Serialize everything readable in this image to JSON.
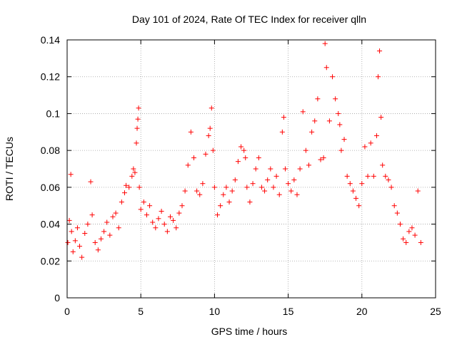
{
  "chart_data": {
    "type": "scatter",
    "title": "Day 101 of 2024, Rate Of TEC Index for receiver qlln",
    "xlabel": "GPS time / hours",
    "ylabel": "ROTI / TECUs",
    "xlim": [
      0,
      25
    ],
    "ylim": [
      0,
      0.14
    ],
    "xticks": [
      0,
      5,
      10,
      15,
      20,
      25
    ],
    "xtick_labels": [
      "0",
      "5",
      "10",
      "15",
      "20",
      "25"
    ],
    "yticks": [
      0,
      0.02,
      0.04,
      0.06,
      0.08,
      0.1,
      0.12,
      0.14
    ],
    "ytick_labels": [
      "0",
      "0.02",
      "0.04",
      "0.06",
      "0.08",
      "0.1",
      "0.12",
      "0.14"
    ],
    "grid": true,
    "marker": "+",
    "series": [
      {
        "name": "ROTI",
        "color": "#ff0000",
        "x": [
          0.05,
          0.15,
          0.25,
          0.3,
          0.4,
          0.55,
          0.7,
          0.85,
          1.0,
          1.2,
          1.4,
          1.6,
          1.7,
          1.9,
          2.1,
          2.3,
          2.5,
          2.7,
          2.9,
          3.1,
          3.3,
          3.5,
          3.7,
          3.9,
          4.0,
          4.2,
          4.4,
          4.5,
          4.6,
          4.7,
          4.75,
          4.8,
          4.85,
          4.9,
          5.0,
          5.2,
          5.4,
          5.6,
          5.8,
          6.0,
          6.2,
          6.4,
          6.6,
          6.8,
          7.0,
          7.2,
          7.4,
          7.6,
          7.8,
          8.0,
          8.2,
          8.4,
          8.6,
          8.8,
          9.0,
          9.2,
          9.4,
          9.6,
          9.7,
          9.8,
          9.9,
          10.0,
          10.2,
          10.4,
          10.6,
          10.8,
          11.0,
          11.2,
          11.4,
          11.6,
          11.8,
          12.0,
          12.1,
          12.2,
          12.4,
          12.6,
          12.8,
          13.0,
          13.2,
          13.4,
          13.6,
          13.8,
          14.0,
          14.2,
          14.4,
          14.6,
          14.7,
          14.8,
          15.0,
          15.2,
          15.4,
          15.6,
          15.8,
          16.0,
          16.2,
          16.4,
          16.6,
          16.8,
          17.0,
          17.2,
          17.4,
          17.5,
          17.6,
          17.8,
          18.0,
          18.2,
          18.4,
          18.5,
          18.6,
          18.8,
          19.0,
          19.2,
          19.4,
          19.6,
          19.8,
          20.0,
          20.2,
          20.4,
          20.6,
          20.8,
          21.0,
          21.1,
          21.2,
          21.3,
          21.4,
          21.6,
          21.8,
          22.0,
          22.2,
          22.4,
          22.6,
          22.8,
          23.0,
          23.2,
          23.4,
          23.6,
          23.8,
          24.0
        ],
        "y": [
          0.03,
          0.042,
          0.067,
          0.036,
          0.025,
          0.031,
          0.038,
          0.028,
          0.022,
          0.035,
          0.04,
          0.063,
          0.045,
          0.03,
          0.026,
          0.032,
          0.036,
          0.041,
          0.034,
          0.044,
          0.046,
          0.038,
          0.052,
          0.057,
          0.061,
          0.06,
          0.066,
          0.07,
          0.068,
          0.084,
          0.092,
          0.097,
          0.103,
          0.06,
          0.048,
          0.052,
          0.045,
          0.05,
          0.041,
          0.038,
          0.043,
          0.047,
          0.04,
          0.036,
          0.044,
          0.042,
          0.038,
          0.046,
          0.05,
          0.058,
          0.072,
          0.09,
          0.076,
          0.058,
          0.056,
          0.062,
          0.078,
          0.088,
          0.092,
          0.103,
          0.08,
          0.06,
          0.045,
          0.05,
          0.056,
          0.06,
          0.052,
          0.058,
          0.064,
          0.074,
          0.082,
          0.08,
          0.076,
          0.06,
          0.052,
          0.062,
          0.07,
          0.076,
          0.06,
          0.058,
          0.064,
          0.07,
          0.06,
          0.066,
          0.056,
          0.09,
          0.098,
          0.07,
          0.062,
          0.058,
          0.064,
          0.056,
          0.07,
          0.101,
          0.08,
          0.072,
          0.09,
          0.096,
          0.108,
          0.075,
          0.076,
          0.138,
          0.125,
          0.096,
          0.12,
          0.108,
          0.1,
          0.094,
          0.08,
          0.086,
          0.066,
          0.062,
          0.058,
          0.054,
          0.05,
          0.062,
          0.082,
          0.066,
          0.084,
          0.066,
          0.088,
          0.12,
          0.134,
          0.098,
          0.072,
          0.066,
          0.064,
          0.06,
          0.05,
          0.046,
          0.04,
          0.032,
          0.03,
          0.036,
          0.038,
          0.034,
          0.058,
          0.03
        ]
      }
    ]
  }
}
